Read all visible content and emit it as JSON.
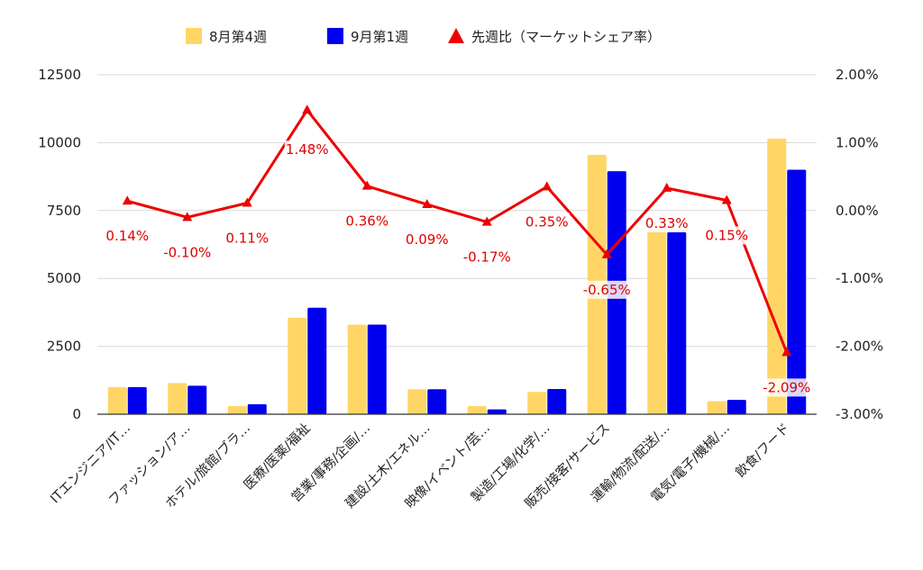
{
  "chart_data": {
    "type": "bar",
    "categories": [
      "ITエンジニア/IT…",
      "ファッション/ア…",
      "ホテル/旅館/ブラ…",
      "医療/医薬/福祉",
      "営業/事務/企画/…",
      "建設/土木/エネル…",
      "映像/イベント/芸…",
      "製造/工場/化学/…",
      "販売/接客/サービス",
      "運輸/物流/配送/…",
      "電気/電子/機械/…",
      "飲食/フード"
    ],
    "series": [
      {
        "name": "8月第4週",
        "type": "bar",
        "axis": "left",
        "values": [
          1000,
          1150,
          300,
          3550,
          3300,
          920,
          300,
          820,
          9550,
          6750,
          480,
          10150
        ]
      },
      {
        "name": "9月第1週",
        "type": "bar",
        "axis": "left",
        "values": [
          1000,
          1050,
          370,
          3920,
          3300,
          920,
          180,
          930,
          8950,
          6700,
          530,
          9000
        ]
      },
      {
        "name": "先週比（マーケットシェア率）",
        "type": "line",
        "axis": "right",
        "values": [
          0.14,
          -0.1,
          0.11,
          1.48,
          0.36,
          0.09,
          -0.17,
          0.35,
          -0.65,
          0.33,
          0.15,
          -2.09
        ],
        "labels": [
          "0.14%",
          "-0.10%",
          "0.11%",
          "1.48%",
          "0.36%",
          "0.09%",
          "-0.17%",
          "0.35%",
          "-0.65%",
          "0.33%",
          "0.15%",
          "-2.09%"
        ]
      }
    ],
    "y_left": {
      "min": 0,
      "max": 12500,
      "ticks": [
        "0",
        "2500",
        "5000",
        "7500",
        "10000",
        "12500"
      ]
    },
    "y_right": {
      "min": -3,
      "max": 2,
      "ticks": [
        "-3.00%",
        "-2.00%",
        "-1.00%",
        "0.00%",
        "1.00%",
        "2.00%"
      ]
    },
    "grid": true,
    "legend_position": "top",
    "colors": {
      "s1": "#ffd666",
      "s2": "#0000ee",
      "line": "#ee0000",
      "grid": "#d9d9d9",
      "axis": "#333333"
    }
  }
}
